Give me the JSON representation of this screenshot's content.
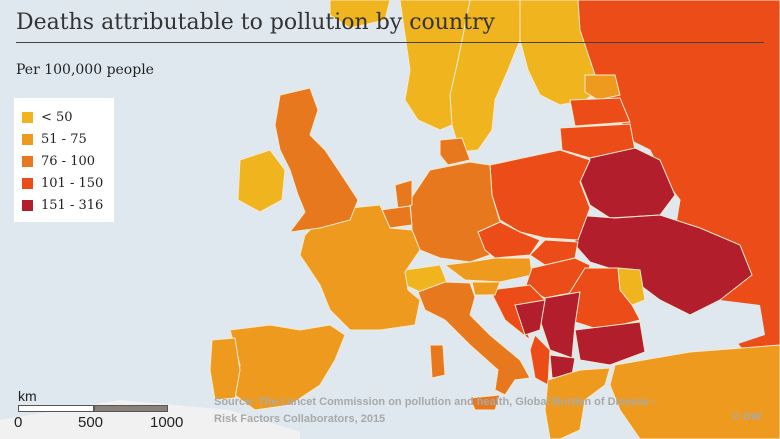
{
  "title": "Deaths attributable to pollution by country",
  "subtitle": "Per 100,000 people",
  "legend": {
    "items": [
      {
        "label": "< 50",
        "color": "#f0b41e"
      },
      {
        "label": "51 - 75",
        "color": "#ee9a1e"
      },
      {
        "label": "76 - 100",
        "color": "#e8781d"
      },
      {
        "label": "101 - 150",
        "color": "#ec4d18"
      },
      {
        "label": "151 - 316",
        "color": "#b21e2c"
      }
    ]
  },
  "scale_bar": {
    "unit": "km",
    "ticks": [
      "0",
      "500",
      "1000"
    ]
  },
  "source": {
    "line1": "Source: The Lancet Commission on pollution and health, Global Burden of Disease -",
    "line2": "Risk Factors Collaborators, 2015"
  },
  "credit": "© DW",
  "colors": {
    "sea": "#dfe8ee",
    "non_data_land": "#f1f1f1",
    "border": "#f7e9d0"
  }
}
